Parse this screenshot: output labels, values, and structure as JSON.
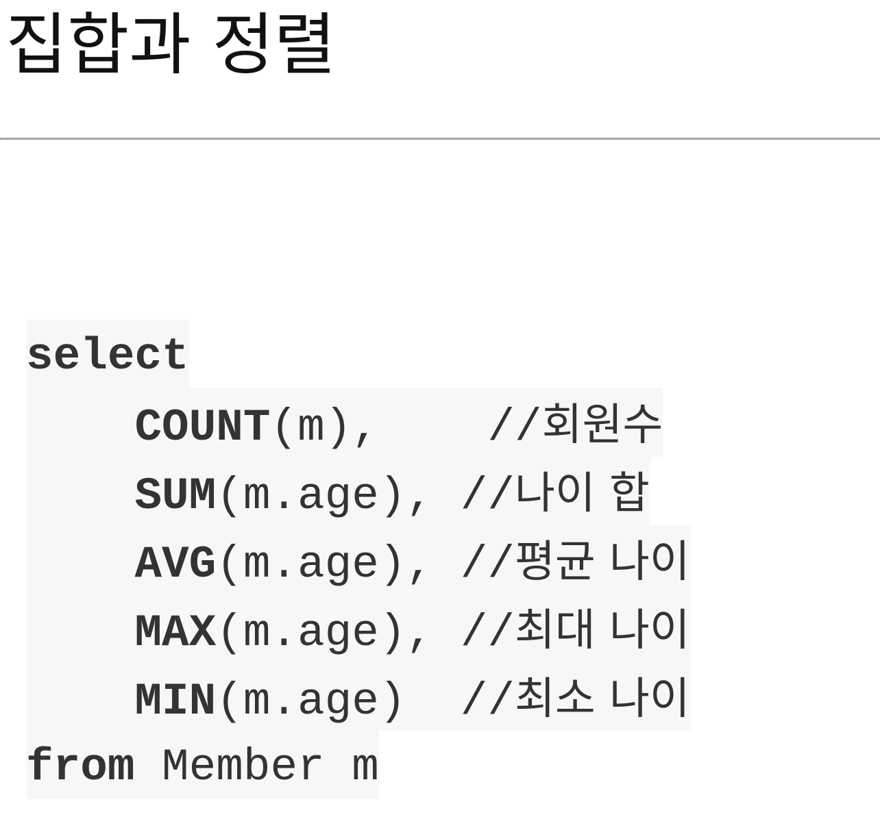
{
  "title": "집합과 정렬",
  "code": {
    "line1": {
      "kw": "select"
    },
    "line2": {
      "fn": "COUNT",
      "args": "(m),",
      "pad": "    ",
      "slashes": "//",
      "comment": "회원수"
    },
    "line3": {
      "fn": "SUM",
      "args": "(m.age),",
      "pad": " ",
      "slashes": "//",
      "comment": "나이 합"
    },
    "line4": {
      "fn": "AVG",
      "args": "(m.age),",
      "pad": " ",
      "slashes": "//",
      "comment": "평균 나이"
    },
    "line5": {
      "fn": "MAX",
      "args": "(m.age),",
      "pad": " ",
      "slashes": "//",
      "comment": "최대 나이"
    },
    "line6": {
      "fn": "MIN",
      "args": "(m.age)",
      "pad": "  ",
      "slashes": "//",
      "comment": "최소 나이"
    },
    "line7": {
      "kw": "from",
      "rest": " Member m"
    }
  }
}
